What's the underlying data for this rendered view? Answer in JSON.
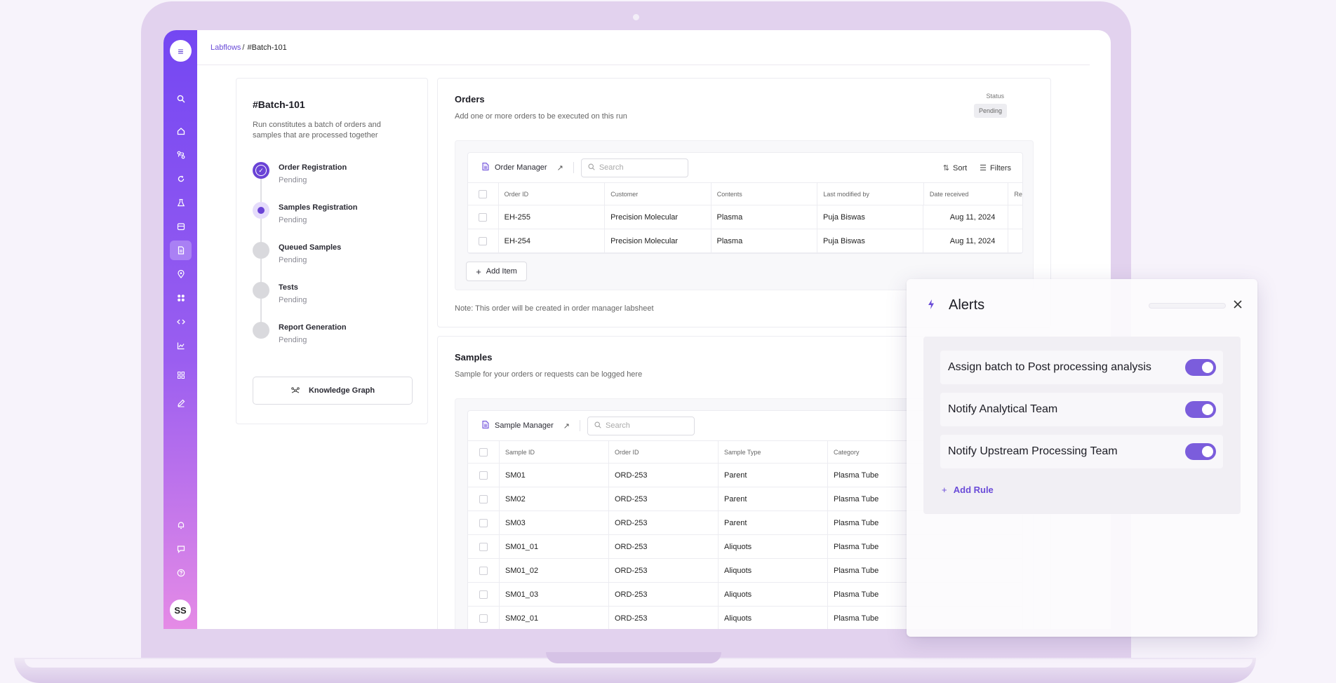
{
  "breadcrumb": {
    "root": "Labflows",
    "separator": "/",
    "current": "#Batch-101"
  },
  "sidebar": {
    "menu_icon": "≡",
    "icons": [
      "search-icon",
      "home-icon",
      "workflow-icon",
      "refresh-icon",
      "flask-icon",
      "inbox-icon",
      "document-icon",
      "location-icon",
      "apps-icon",
      "code-icon",
      "chart-icon",
      "grid-icon",
      "edit-icon",
      "bell-icon",
      "chat-icon",
      "help-icon"
    ],
    "avatar": "SS"
  },
  "batch": {
    "title": "#Batch-101",
    "description": "Run constitutes a batch of orders and samples that are processed together",
    "steps": [
      {
        "name": "Order Registration",
        "status": "Pending",
        "state": "done"
      },
      {
        "name": "Samples Registration",
        "status": "Pending",
        "state": "current"
      },
      {
        "name": "Queued Samples",
        "status": "Pending",
        "state": "todo"
      },
      {
        "name": "Tests",
        "status": "Pending",
        "state": "todo"
      },
      {
        "name": "Report Generation",
        "status": "Pending",
        "state": "todo"
      }
    ],
    "knowledge_graph": "Knowledge Graph"
  },
  "orders": {
    "title": "Orders",
    "subtitle": "Add one or more orders to be executed on this run",
    "status_label": "Status",
    "status_value": "Pending",
    "manager": "Order Manager",
    "search_placeholder": "Search",
    "sort": "Sort",
    "filters": "Filters",
    "columns": [
      "Order ID",
      "Customer",
      "Contents",
      "Last modified by",
      "Date received",
      "Re"
    ],
    "rows": [
      [
        "EH-255",
        "Precision Molecular",
        "Plasma",
        "Puja Biswas",
        "Aug 11, 2024",
        ""
      ],
      [
        "EH-254",
        "Precision Molecular",
        "Plasma",
        "Puja Biswas",
        "Aug 11, 2024",
        ""
      ]
    ],
    "add_item": "Add Item",
    "note": "Note: This order will be created in order manager labsheet"
  },
  "samples": {
    "title": "Samples",
    "subtitle": "Sample for your orders or requests can be logged here",
    "manager": "Sample Manager",
    "search_placeholder": "Search",
    "columns": [
      "Sample ID",
      "Order ID",
      "Sample Type",
      "Category"
    ],
    "rows": [
      [
        "SM01",
        "ORD-253",
        "Parent",
        "Plasma Tube"
      ],
      [
        "SM02",
        "ORD-253",
        "Parent",
        "Plasma Tube"
      ],
      [
        "SM03",
        "ORD-253",
        "Parent",
        "Plasma Tube"
      ],
      [
        "SM01_01",
        "ORD-253",
        "Aliquots",
        "Plasma Tube"
      ],
      [
        "SM01_02",
        "ORD-253",
        "Aliquots",
        "Plasma Tube"
      ],
      [
        "SM01_03",
        "ORD-253",
        "Aliquots",
        "Plasma Tube"
      ],
      [
        "SM02_01",
        "ORD-253",
        "Aliquots",
        "Plasma Tube"
      ]
    ]
  },
  "alerts": {
    "title": "Alerts",
    "rules": [
      {
        "label": "Assign batch to Post processing analysis",
        "enabled": true
      },
      {
        "label": "Notify Analytical Team",
        "enabled": true
      },
      {
        "label": "Notify Upstream Processing Team",
        "enabled": true
      }
    ],
    "add_rule": "Add Rule"
  },
  "colors": {
    "accent": "#6a43d6",
    "sidebar_top": "#7447f2",
    "sidebar_bottom": "#e58be6"
  }
}
